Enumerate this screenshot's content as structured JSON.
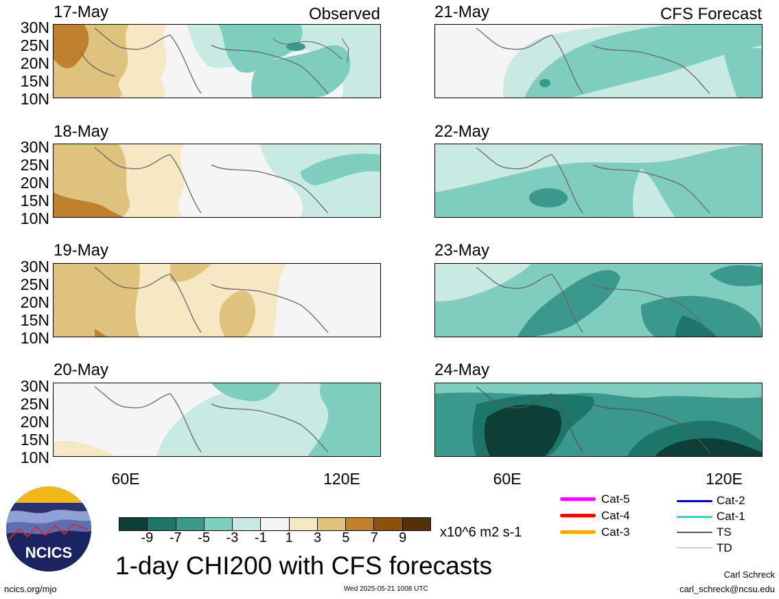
{
  "panels": [
    {
      "date": "17-May",
      "label": "Observed",
      "palette": "obs1"
    },
    {
      "date": "21-May",
      "label": "CFS Forecast",
      "palette": "fc1"
    },
    {
      "date": "18-May",
      "label": "",
      "palette": "obs2"
    },
    {
      "date": "22-May",
      "label": "",
      "palette": "fc2"
    },
    {
      "date": "19-May",
      "label": "",
      "palette": "obs3"
    },
    {
      "date": "23-May",
      "label": "",
      "palette": "fc3"
    },
    {
      "date": "20-May",
      "label": "",
      "palette": "obs4"
    },
    {
      "date": "24-May",
      "label": "",
      "palette": "fc4"
    }
  ],
  "lat_labels": [
    "30N",
    "25N",
    "20N",
    "15N",
    "10N"
  ],
  "lon_labels": [
    "60E",
    "120E"
  ],
  "colorbar": {
    "colors": [
      "#0e3f36",
      "#1e766a",
      "#3a988c",
      "#7fcdbf",
      "#c8eae3",
      "#f5f5f5",
      "#f6e8c3",
      "#dfc27d",
      "#bf812d",
      "#8c510a",
      "#543005"
    ],
    "labels": [
      "-9",
      "-7",
      "-5",
      "-3",
      "-1",
      "1",
      "3",
      "5",
      "7",
      "9"
    ],
    "units": "x10^6 m2 s-1"
  },
  "title": "1-day CHI200 with CFS forecasts",
  "footer": {
    "website": "ncics.org/mjo",
    "timestamp": "Wed 2025-05-21 1008 UTC",
    "author": "Carl Schreck",
    "email": "carl_schreck@ncsu.edu"
  },
  "logo_text": "NCICS",
  "legend": [
    {
      "label": "Cat-5",
      "color": "#ff00ff"
    },
    {
      "label": "Cat-4",
      "color": "#ff0000"
    },
    {
      "label": "Cat-3",
      "color": "#ffa500"
    },
    {
      "label": "Cat-2",
      "color": "#0000cd"
    },
    {
      "label": "Cat-1",
      "color": "#00e5ee"
    },
    {
      "label": "TS",
      "color": "#555555"
    },
    {
      "label": "TD",
      "color": "#aaaaaa"
    }
  ]
}
